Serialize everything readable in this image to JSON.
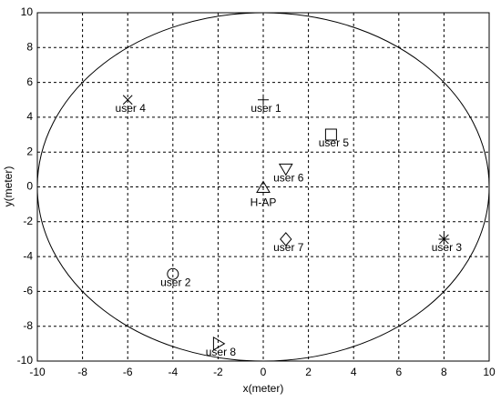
{
  "chart_data": {
    "type": "scatter",
    "x_label": "x(meter)",
    "y_label": "y(meter)",
    "xlim": [
      -10,
      10
    ],
    "ylim": [
      -10,
      10
    ],
    "xticks": [
      -10,
      -8,
      -6,
      -4,
      -2,
      0,
      2,
      4,
      6,
      8,
      10
    ],
    "yticks": [
      -10,
      -8,
      -6,
      -4,
      -2,
      0,
      2,
      4,
      6,
      8,
      10
    ],
    "grid": true,
    "color": "#000000",
    "circle": {
      "center": [
        0,
        0
      ],
      "radius": 10
    },
    "points": [
      {
        "name": "user 1",
        "x": 0,
        "y": 5,
        "marker": "plus"
      },
      {
        "name": "user 2",
        "x": -4,
        "y": -5,
        "marker": "circle"
      },
      {
        "name": "user 3",
        "x": 8,
        "y": -3,
        "marker": "star"
      },
      {
        "name": "user 4",
        "x": -6,
        "y": 5,
        "marker": "cross"
      },
      {
        "name": "user 5",
        "x": 3,
        "y": 3,
        "marker": "square"
      },
      {
        "name": "user 6",
        "x": 1,
        "y": 1,
        "marker": "triangle-down"
      },
      {
        "name": "user 7",
        "x": 1,
        "y": -3,
        "marker": "diamond"
      },
      {
        "name": "user 8",
        "x": -2,
        "y": -9,
        "marker": "triangle-right"
      },
      {
        "name": "H-AP",
        "x": 0,
        "y": 0,
        "marker": "triangle-up"
      }
    ]
  }
}
